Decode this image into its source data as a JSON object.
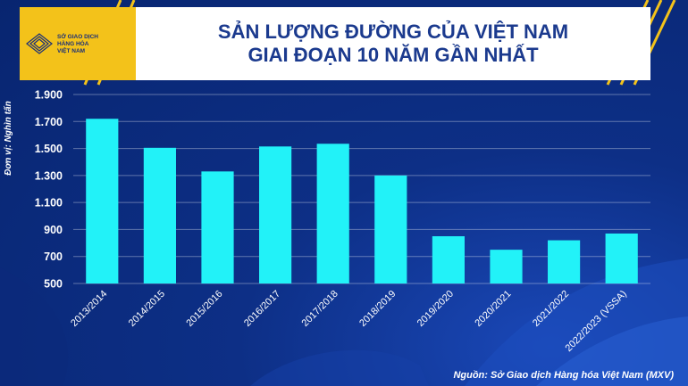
{
  "logo": {
    "line1": "SỞ GIAO DỊCH",
    "line2": "HÀNG HÓA",
    "line3": "VIỆT NAM"
  },
  "title": {
    "line1": "SẢN LƯỢNG ĐƯỜNG CỦA VIỆT NAM",
    "line2": "GIAI ĐOẠN 10 NĂM GẦN NHẤT"
  },
  "colors": {
    "bar": "#22f2f8",
    "header_text": "#1b3a8e",
    "accent": "#f3c21a",
    "background": "#0d2f86"
  },
  "source": "Nguồn: Sở Giao dịch Hàng hóa Việt Nam (MXV)",
  "chart_data": {
    "type": "bar",
    "title": "SẢN LƯỢNG ĐƯỜNG CỦA VIỆT NAM GIAI ĐOẠN 10 NĂM GẦN NHẤT",
    "ylabel": "Đơn vị: Nghìn tấn",
    "xlabel": "",
    "categories": [
      "2013/2014",
      "2014/2015",
      "2015/2016",
      "2016/2017",
      "2017/2018",
      "2018/2019",
      "2019/2020",
      "2020/2021",
      "2021/2022",
      "2022/2023 (VSSA)"
    ],
    "values": [
      1720,
      1505,
      1330,
      1515,
      1535,
      1300,
      850,
      750,
      820,
      870
    ],
    "ylim": [
      500,
      1900
    ],
    "yticks": [
      500,
      700,
      900,
      1100,
      1300,
      1500,
      1700,
      1900
    ],
    "ytick_labels": [
      "500",
      "700",
      "900",
      "1.100",
      "1.300",
      "1.500",
      "1.700",
      "1.900"
    ],
    "grid": true,
    "legend": "none"
  }
}
